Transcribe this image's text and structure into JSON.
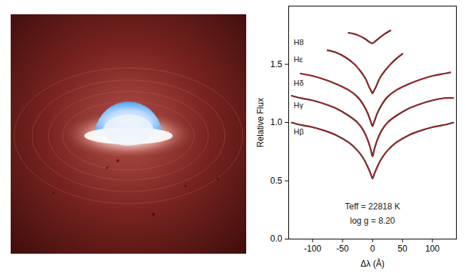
{
  "chart_data": {
    "type": "line",
    "xlabel": "Δλ (Å)",
    "ylabel": "Relative Flux",
    "xlim": [
      -140,
      140
    ],
    "xticks": [
      -100,
      -50,
      0,
      50,
      100
    ],
    "ylim": [
      0,
      2.0
    ],
    "yticks": [
      {
        "value": 0,
        "label": "0.0"
      },
      {
        "value": 0.5,
        "label": "0.5"
      },
      {
        "value": 1,
        "label": "1.0"
      },
      {
        "value": 1.5,
        "label": "1.5"
      }
    ],
    "annotations": [
      "Teff = 22818 K",
      "log g = 8.20"
    ],
    "series": [
      {
        "name": "Hβ",
        "color": "#d42a2a",
        "x": [
          -135,
          -120,
          -100,
          -80,
          -60,
          -40,
          -25,
          -15,
          -8,
          -3,
          0,
          3,
          8,
          15,
          25,
          40,
          60,
          80,
          100,
          120,
          135
        ],
        "values": [
          1.0,
          0.98,
          0.96,
          0.93,
          0.89,
          0.83,
          0.76,
          0.69,
          0.62,
          0.56,
          0.52,
          0.56,
          0.62,
          0.69,
          0.76,
          0.83,
          0.89,
          0.93,
          0.96,
          0.98,
          1.0
        ]
      },
      {
        "name": "Hγ",
        "color": "#d42a2a",
        "x": [
          -135,
          -120,
          -100,
          -80,
          -60,
          -40,
          -25,
          -15,
          -8,
          -3,
          0,
          3,
          8,
          15,
          25,
          40,
          60,
          80,
          100,
          120,
          135
        ],
        "values": [
          1.23,
          1.21,
          1.19,
          1.16,
          1.12,
          1.06,
          1.0,
          0.93,
          0.85,
          0.77,
          0.71,
          0.77,
          0.85,
          0.93,
          1.0,
          1.06,
          1.12,
          1.16,
          1.19,
          1.21,
          1.21
        ]
      },
      {
        "name": "Hδ",
        "color": "#d42a2a",
        "x": [
          -120,
          -100,
          -80,
          -60,
          -40,
          -25,
          -15,
          -8,
          -3,
          0,
          3,
          8,
          15,
          25,
          40,
          60,
          80,
          100,
          120,
          130
        ],
        "values": [
          1.42,
          1.4,
          1.37,
          1.33,
          1.28,
          1.22,
          1.15,
          1.08,
          1.01,
          0.97,
          1.01,
          1.08,
          1.15,
          1.22,
          1.28,
          1.33,
          1.37,
          1.4,
          1.42,
          1.43
        ]
      },
      {
        "name": "Hε",
        "color": "#d42a2a",
        "x": [
          -75,
          -60,
          -45,
          -30,
          -20,
          -12,
          -6,
          -2,
          0,
          2,
          6,
          12,
          20,
          30,
          40,
          50
        ],
        "values": [
          1.62,
          1.6,
          1.56,
          1.5,
          1.44,
          1.38,
          1.31,
          1.27,
          1.25,
          1.27,
          1.31,
          1.38,
          1.44,
          1.5,
          1.55,
          1.59
        ]
      },
      {
        "name": "H8",
        "color": "#d42a2a",
        "x": [
          -40,
          -30,
          -20,
          -10,
          -5,
          0,
          5,
          10,
          20,
          30
        ],
        "values": [
          1.77,
          1.76,
          1.74,
          1.71,
          1.69,
          1.68,
          1.7,
          1.72,
          1.76,
          1.79
        ]
      }
    ]
  }
}
